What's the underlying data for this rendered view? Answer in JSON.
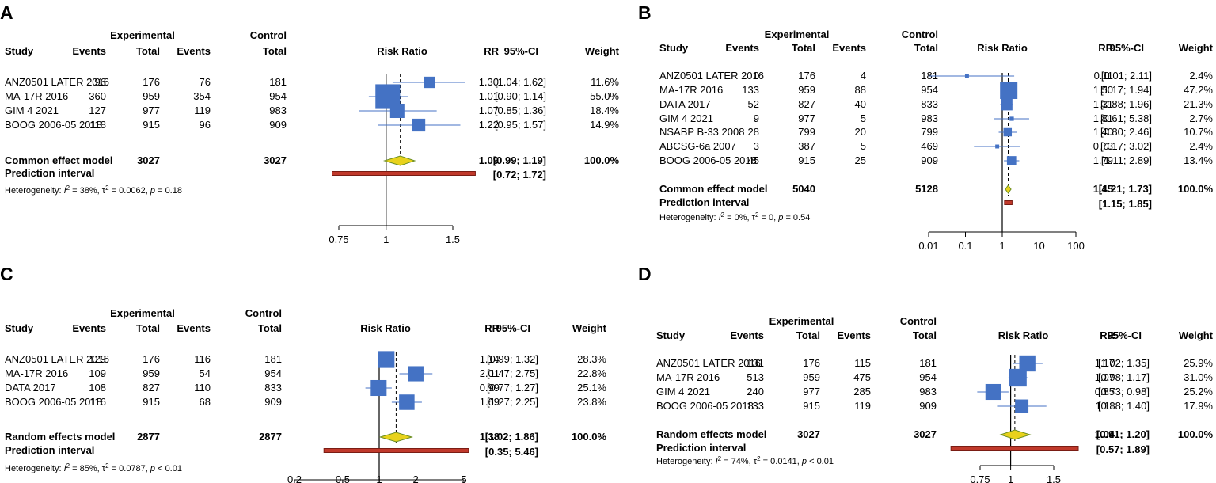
{
  "headers": {
    "study": "Study",
    "experimental": "Experimental",
    "control": "Control",
    "events": "Events",
    "total": "Total",
    "risk_ratio": "Risk Ratio",
    "rr": "RR",
    "ci": "95%-CI",
    "weight": "Weight",
    "prediction": "Prediction interval"
  },
  "colors": {
    "square": "#4472c4",
    "ci_line": "#4472c4",
    "diamond_fill": "#e8d21c",
    "diamond_stroke": "#6b8e23",
    "pred_fill": "#c0392b",
    "pred_stroke": "#7a1d14"
  },
  "chart_data": [
    {
      "type": "forest",
      "panel": "A",
      "scale": "log",
      "ticks": [
        "0.75",
        "1",
        "1.5"
      ],
      "xlim": [
        0.62,
        2.05
      ],
      "studies": [
        {
          "name": "ANZ0501 LATER 2016",
          "e_events": "96",
          "e_total": "176",
          "c_events": "76",
          "c_total": "181",
          "rr": 1.3,
          "lo": 1.04,
          "hi": 1.62,
          "rr_text": "1.30",
          "ci_text": "[1.04; 1.62]",
          "weight": "11.6%",
          "w": 11.6
        },
        {
          "name": "MA-17R 2016",
          "e_events": "360",
          "e_total": "959",
          "c_events": "354",
          "c_total": "954",
          "rr": 1.01,
          "lo": 0.9,
          "hi": 1.14,
          "rr_text": "1.01",
          "ci_text": "[0.90; 1.14]",
          "weight": "55.0%",
          "w": 55.0
        },
        {
          "name": "GIM 4 2021",
          "e_events": "127",
          "e_total": "977",
          "c_events": "119",
          "c_total": "983",
          "rr": 1.07,
          "lo": 0.85,
          "hi": 1.36,
          "rr_text": "1.07",
          "ci_text": "[0.85; 1.36]",
          "weight": "18.4%",
          "w": 18.4
        },
        {
          "name": "BOOG 2006-05 2018",
          "e_events": "118",
          "e_total": "915",
          "c_events": "96",
          "c_total": "909",
          "rr": 1.22,
          "lo": 0.95,
          "hi": 1.57,
          "rr_text": "1.22",
          "ci_text": "[0.95; 1.57]",
          "weight": "14.9%",
          "w": 14.9
        }
      ],
      "pooled": {
        "label": "Common effect model",
        "e_total": "3027",
        "c_total": "3027",
        "rr": 1.09,
        "lo": 0.99,
        "hi": 1.19,
        "rr_text": "1.09",
        "ci_text": "[0.99; 1.19]",
        "weight": "100.0%"
      },
      "prediction": {
        "lo": 0.72,
        "hi": 1.72,
        "ci_text": "[0.72; 1.72]"
      },
      "heterogeneity": {
        "label": "Heterogeneity: ",
        "i2": "= 38%,",
        "tau2": "= 0.0062,",
        "p": "= 0.18"
      }
    },
    {
      "type": "forest",
      "panel": "B",
      "scale": "log",
      "ticks": [
        "0.01",
        "0.1",
        "1",
        "10",
        "100"
      ],
      "xlim": [
        0.01,
        100
      ],
      "studies": [
        {
          "name": "ANZ0501 LATER 2016",
          "e_events": "0",
          "e_total": "176",
          "c_events": "4",
          "c_total": "181",
          "rr": 0.11,
          "lo": 0.01,
          "hi": 2.11,
          "rr_text": "0.11",
          "ci_text": "[0.01; 2.11]",
          "weight": "2.4%",
          "w": 2.4
        },
        {
          "name": "MA-17R 2016",
          "e_events": "133",
          "e_total": "959",
          "c_events": "88",
          "c_total": "954",
          "rr": 1.5,
          "lo": 1.17,
          "hi": 1.94,
          "rr_text": "1.50",
          "ci_text": "[1.17; 1.94]",
          "weight": "47.2%",
          "w": 47.2
        },
        {
          "name": "DATA 2017",
          "e_events": "52",
          "e_total": "827",
          "c_events": "40",
          "c_total": "833",
          "rr": 1.31,
          "lo": 0.88,
          "hi": 1.96,
          "rr_text": "1.31",
          "ci_text": "[0.88; 1.96]",
          "weight": "21.3%",
          "w": 21.3
        },
        {
          "name": "GIM 4 2021",
          "e_events": "9",
          "e_total": "977",
          "c_events": "5",
          "c_total": "983",
          "rr": 1.81,
          "lo": 0.61,
          "hi": 5.38,
          "rr_text": "1.81",
          "ci_text": "[0.61; 5.38]",
          "weight": "2.7%",
          "w": 2.7
        },
        {
          "name": "NSABP B-33 2008",
          "e_events": "28",
          "e_total": "799",
          "c_events": "20",
          "c_total": "799",
          "rr": 1.4,
          "lo": 0.8,
          "hi": 2.46,
          "rr_text": "1.40",
          "ci_text": "[0.80; 2.46]",
          "weight": "10.7%",
          "w": 10.7
        },
        {
          "name": "ABCSG-6a 2007",
          "e_events": "3",
          "e_total": "387",
          "c_events": "5",
          "c_total": "469",
          "rr": 0.73,
          "lo": 0.17,
          "hi": 3.02,
          "rr_text": "0.73",
          "ci_text": "[0.17; 3.02]",
          "weight": "2.4%",
          "w": 2.4
        },
        {
          "name": "BOOG 2006-05 2018",
          "e_events": "45",
          "e_total": "915",
          "c_events": "25",
          "c_total": "909",
          "rr": 1.79,
          "lo": 1.11,
          "hi": 2.89,
          "rr_text": "1.79",
          "ci_text": "[1.11; 2.89]",
          "weight": "13.4%",
          "w": 13.4
        }
      ],
      "pooled": {
        "label": "Common effect model",
        "e_total": "5040",
        "c_total": "5128",
        "rr": 1.45,
        "lo": 1.21,
        "hi": 1.73,
        "rr_text": "1.45",
        "ci_text": "[1.21; 1.73]",
        "weight": "100.0%"
      },
      "prediction": {
        "lo": 1.15,
        "hi": 1.85,
        "ci_text": "[1.15; 1.85]"
      },
      "heterogeneity": {
        "label": "Heterogeneity: ",
        "i2": "= 0%,",
        "tau2": "= 0,",
        "p": "= 0.54"
      }
    },
    {
      "type": "forest",
      "panel": "C",
      "scale": "log",
      "ticks": [
        "0.2",
        "0.5",
        "1",
        "2",
        "5"
      ],
      "xlim": [
        0.2,
        5
      ],
      "studies": [
        {
          "name": "ANZ0501 LATER 2016",
          "e_events": "129",
          "e_total": "176",
          "c_events": "116",
          "c_total": "181",
          "rr": 1.14,
          "lo": 0.99,
          "hi": 1.32,
          "rr_text": "1.14",
          "ci_text": "[0.99; 1.32]",
          "weight": "28.3%",
          "w": 28.3
        },
        {
          "name": "MA-17R 2016",
          "e_events": "109",
          "e_total": "959",
          "c_events": "54",
          "c_total": "954",
          "rr": 2.01,
          "lo": 1.47,
          "hi": 2.75,
          "rr_text": "2.01",
          "ci_text": "[1.47; 2.75]",
          "weight": "22.8%",
          "w": 22.8
        },
        {
          "name": "DATA 2017",
          "e_events": "108",
          "e_total": "827",
          "c_events": "110",
          "c_total": "833",
          "rr": 0.99,
          "lo": 0.77,
          "hi": 1.27,
          "rr_text": "0.99",
          "ci_text": "[0.77; 1.27]",
          "weight": "25.1%",
          "w": 25.1
        },
        {
          "name": "BOOG 2006-05 2018",
          "e_events": "116",
          "e_total": "915",
          "c_events": "68",
          "c_total": "909",
          "rr": 1.69,
          "lo": 1.27,
          "hi": 2.25,
          "rr_text": "1.69",
          "ci_text": "[1.27; 2.25]",
          "weight": "23.8%",
          "w": 23.8
        }
      ],
      "pooled": {
        "label": "Random effects model",
        "e_total": "2877",
        "c_total": "2877",
        "rr": 1.38,
        "lo": 1.02,
        "hi": 1.86,
        "rr_text": "1.38",
        "ci_text": "[1.02; 1.86]",
        "weight": "100.0%"
      },
      "prediction": {
        "lo": 0.35,
        "hi": 5.46,
        "ci_text": "[0.35; 5.46]"
      },
      "heterogeneity": {
        "label": "Heterogeneity: ",
        "i2": "= 85%,",
        "tau2": "= 0.0787,",
        "p": "< 0.01"
      }
    },
    {
      "type": "forest",
      "panel": "D",
      "scale": "log",
      "ticks": [
        "0.75",
        "1",
        "1.5"
      ],
      "xlim": [
        0.55,
        1.95
      ],
      "studies": [
        {
          "name": "ANZ0501 LATER 2016",
          "e_events": "131",
          "e_total": "176",
          "c_events": "115",
          "c_total": "181",
          "rr": 1.17,
          "lo": 1.02,
          "hi": 1.35,
          "rr_text": "1.17",
          "ci_text": "[1.02; 1.35]",
          "weight": "25.9%",
          "w": 25.9
        },
        {
          "name": "MA-17R 2016",
          "e_events": "513",
          "e_total": "959",
          "c_events": "475",
          "c_total": "954",
          "rr": 1.07,
          "lo": 0.98,
          "hi": 1.17,
          "rr_text": "1.07",
          "ci_text": "[0.98; 1.17]",
          "weight": "31.0%",
          "w": 31.0
        },
        {
          "name": "GIM 4 2021",
          "e_events": "240",
          "e_total": "977",
          "c_events": "285",
          "c_total": "983",
          "rr": 0.85,
          "lo": 0.73,
          "hi": 0.98,
          "rr_text": "0.85",
          "ci_text": "[0.73; 0.98]",
          "weight": "25.2%",
          "w": 25.2
        },
        {
          "name": "BOOG 2006-05 2018",
          "e_events": "133",
          "e_total": "915",
          "c_events": "119",
          "c_total": "909",
          "rr": 1.11,
          "lo": 0.88,
          "hi": 1.4,
          "rr_text": "1.11",
          "ci_text": "[0.88; 1.40]",
          "weight": "17.9%",
          "w": 17.9
        }
      ],
      "pooled": {
        "label": "Random effects model",
        "e_total": "3027",
        "c_total": "3027",
        "rr": 1.04,
        "lo": 0.91,
        "hi": 1.2,
        "rr_text": "1.04",
        "ci_text": "[0.91; 1.20]",
        "weight": "100.0%"
      },
      "prediction": {
        "lo": 0.57,
        "hi": 1.89,
        "ci_text": "[0.57; 1.89]"
      },
      "heterogeneity": {
        "label": "Heterogeneity: ",
        "i2": "= 74%,",
        "tau2": "= 0.0141,",
        "p": "< 0.01"
      }
    }
  ]
}
